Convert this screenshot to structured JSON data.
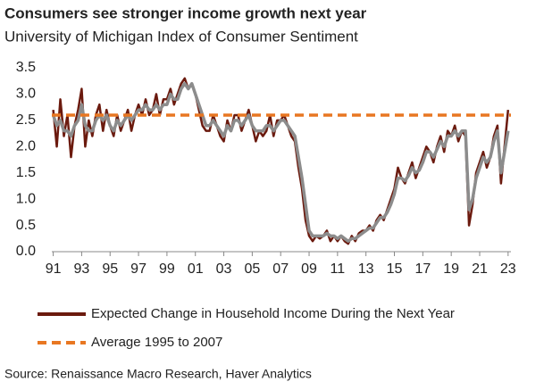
{
  "chart_data": {
    "type": "line",
    "title": "Consumers see stronger income growth next year",
    "subtitle": "University of Michigan Index of Consumer Sentiment",
    "source": "Source: Renaissance Macro Research, Haver Analytics",
    "x": [
      1991,
      1991.25,
      1991.5,
      1991.75,
      1992,
      1992.25,
      1992.5,
      1992.75,
      1993,
      1993.25,
      1993.5,
      1993.75,
      1994,
      1994.25,
      1994.5,
      1994.75,
      1995,
      1995.25,
      1995.5,
      1995.75,
      1996,
      1996.25,
      1996.5,
      1996.75,
      1997,
      1997.25,
      1997.5,
      1997.75,
      1998,
      1998.25,
      1998.5,
      1998.75,
      1999,
      1999.25,
      1999.5,
      1999.75,
      2000,
      2000.25,
      2000.5,
      2000.75,
      2001,
      2001.25,
      2001.5,
      2001.75,
      2002,
      2002.25,
      2002.5,
      2002.75,
      2003,
      2003.25,
      2003.5,
      2003.75,
      2004,
      2004.25,
      2004.5,
      2004.75,
      2005,
      2005.25,
      2005.5,
      2005.75,
      2006,
      2006.25,
      2006.5,
      2006.75,
      2007,
      2007.25,
      2007.5,
      2007.75,
      2008,
      2008.25,
      2008.5,
      2008.75,
      2009,
      2009.25,
      2009.5,
      2009.75,
      2010,
      2010.25,
      2010.5,
      2010.75,
      2011,
      2011.25,
      2011.5,
      2011.75,
      2012,
      2012.25,
      2012.5,
      2012.75,
      2013,
      2013.25,
      2013.5,
      2013.75,
      2014,
      2014.25,
      2014.5,
      2014.75,
      2015,
      2015.25,
      2015.5,
      2015.75,
      2016,
      2016.25,
      2016.5,
      2016.75,
      2017,
      2017.25,
      2017.5,
      2017.75,
      2018,
      2018.25,
      2018.5,
      2018.75,
      2019,
      2019.25,
      2019.5,
      2019.75,
      2020,
      2020.25,
      2020.5,
      2020.75,
      2021,
      2021.25,
      2021.5,
      2021.75,
      2022,
      2022.25,
      2022.5,
      2022.75,
      2023
    ],
    "series": [
      {
        "name": "Expected Change in Household Income During the Next Year",
        "color": "#6b1a0e",
        "values": [
          2.7,
          2.0,
          2.9,
          2.2,
          2.6,
          1.8,
          2.4,
          2.7,
          3.1,
          2.0,
          2.5,
          2.2,
          2.6,
          2.8,
          2.3,
          2.7,
          2.4,
          2.2,
          2.6,
          2.3,
          2.5,
          2.7,
          2.3,
          2.6,
          2.8,
          2.6,
          2.9,
          2.6,
          2.7,
          3.0,
          2.6,
          2.9,
          2.9,
          3.1,
          2.8,
          3.0,
          3.2,
          3.3,
          3.1,
          3.2,
          3.0,
          2.7,
          2.4,
          2.3,
          2.3,
          2.6,
          2.4,
          2.2,
          2.1,
          2.5,
          2.3,
          2.6,
          2.6,
          2.3,
          2.5,
          2.7,
          2.4,
          2.1,
          2.3,
          2.2,
          2.3,
          2.6,
          2.2,
          2.5,
          2.5,
          2.6,
          2.4,
          2.2,
          2.1,
          1.6,
          1.2,
          0.6,
          0.3,
          0.2,
          0.3,
          0.25,
          0.3,
          0.4,
          0.2,
          0.3,
          0.2,
          0.3,
          0.2,
          0.15,
          0.3,
          0.2,
          0.35,
          0.4,
          0.4,
          0.5,
          0.4,
          0.6,
          0.7,
          0.6,
          0.8,
          1.0,
          1.2,
          1.6,
          1.4,
          1.3,
          1.5,
          1.7,
          1.4,
          1.6,
          1.8,
          2.0,
          1.9,
          1.7,
          2.0,
          2.2,
          1.9,
          2.3,
          2.2,
          2.4,
          2.1,
          2.3,
          2.2,
          0.5,
          0.9,
          1.5,
          1.7,
          1.9,
          1.6,
          1.8,
          2.2,
          2.4,
          1.3,
          2.0,
          2.7
        ]
      },
      {
        "color": "#8c8c8c",
        "values": [
          2.6,
          2.4,
          2.5,
          2.3,
          2.3,
          2.2,
          2.4,
          2.5,
          2.8,
          2.4,
          2.3,
          2.3,
          2.5,
          2.6,
          2.5,
          2.6,
          2.4,
          2.3,
          2.5,
          2.4,
          2.5,
          2.6,
          2.5,
          2.6,
          2.7,
          2.7,
          2.8,
          2.7,
          2.7,
          2.8,
          2.7,
          2.8,
          2.8,
          3.0,
          2.9,
          2.9,
          3.1,
          3.2,
          3.1,
          3.2,
          3.0,
          2.8,
          2.6,
          2.4,
          2.4,
          2.5,
          2.4,
          2.3,
          2.2,
          2.4,
          2.3,
          2.5,
          2.5,
          2.4,
          2.5,
          2.6,
          2.4,
          2.3,
          2.3,
          2.3,
          2.4,
          2.4,
          2.3,
          2.4,
          2.5,
          2.5,
          2.4,
          2.3,
          2.2,
          1.8,
          1.4,
          0.9,
          0.4,
          0.3,
          0.3,
          0.3,
          0.3,
          0.35,
          0.3,
          0.3,
          0.25,
          0.3,
          0.25,
          0.2,
          0.25,
          0.25,
          0.3,
          0.35,
          0.4,
          0.45,
          0.45,
          0.55,
          0.65,
          0.65,
          0.75,
          0.9,
          1.1,
          1.4,
          1.4,
          1.35,
          1.45,
          1.6,
          1.5,
          1.55,
          1.7,
          1.9,
          1.9,
          1.8,
          1.95,
          2.1,
          2.0,
          2.2,
          2.2,
          2.3,
          2.2,
          2.3,
          2.3,
          0.8,
          1.0,
          1.4,
          1.6,
          1.8,
          1.7,
          1.8,
          2.1,
          2.3,
          1.5,
          1.9,
          2.3
        ]
      }
    ],
    "hlines": [
      {
        "name": "Average 1995 to 2007",
        "value": 2.6,
        "color": "#e87722"
      }
    ],
    "xlim": [
      1990.9,
      2023.2
    ],
    "xticks": [
      {
        "value": 1991,
        "label": "91"
      },
      {
        "value": 1993,
        "label": "93"
      },
      {
        "value": 1995,
        "label": "95"
      },
      {
        "value": 1997,
        "label": "97"
      },
      {
        "value": 1999,
        "label": "99"
      },
      {
        "value": 2001,
        "label": "01"
      },
      {
        "value": 2003,
        "label": "03"
      },
      {
        "value": 2005,
        "label": "05"
      },
      {
        "value": 2007,
        "label": "07"
      },
      {
        "value": 2009,
        "label": "09"
      },
      {
        "value": 2011,
        "label": "11"
      },
      {
        "value": 2013,
        "label": "13"
      },
      {
        "value": 2015,
        "label": "15"
      },
      {
        "value": 2017,
        "label": "17"
      },
      {
        "value": 2019,
        "label": "19"
      },
      {
        "value": 2021,
        "label": "21"
      },
      {
        "value": 2023,
        "label": "23"
      }
    ],
    "ylim": [
      0,
      3.5
    ],
    "yticks": [
      {
        "value": 0,
        "label": "0.0"
      },
      0.5,
      {
        "value": 1,
        "label": "1.0"
      },
      1.5,
      {
        "value": 2,
        "label": "2.0"
      },
      2.5,
      {
        "value": 3,
        "label": "3.0"
      },
      3.5
    ]
  }
}
